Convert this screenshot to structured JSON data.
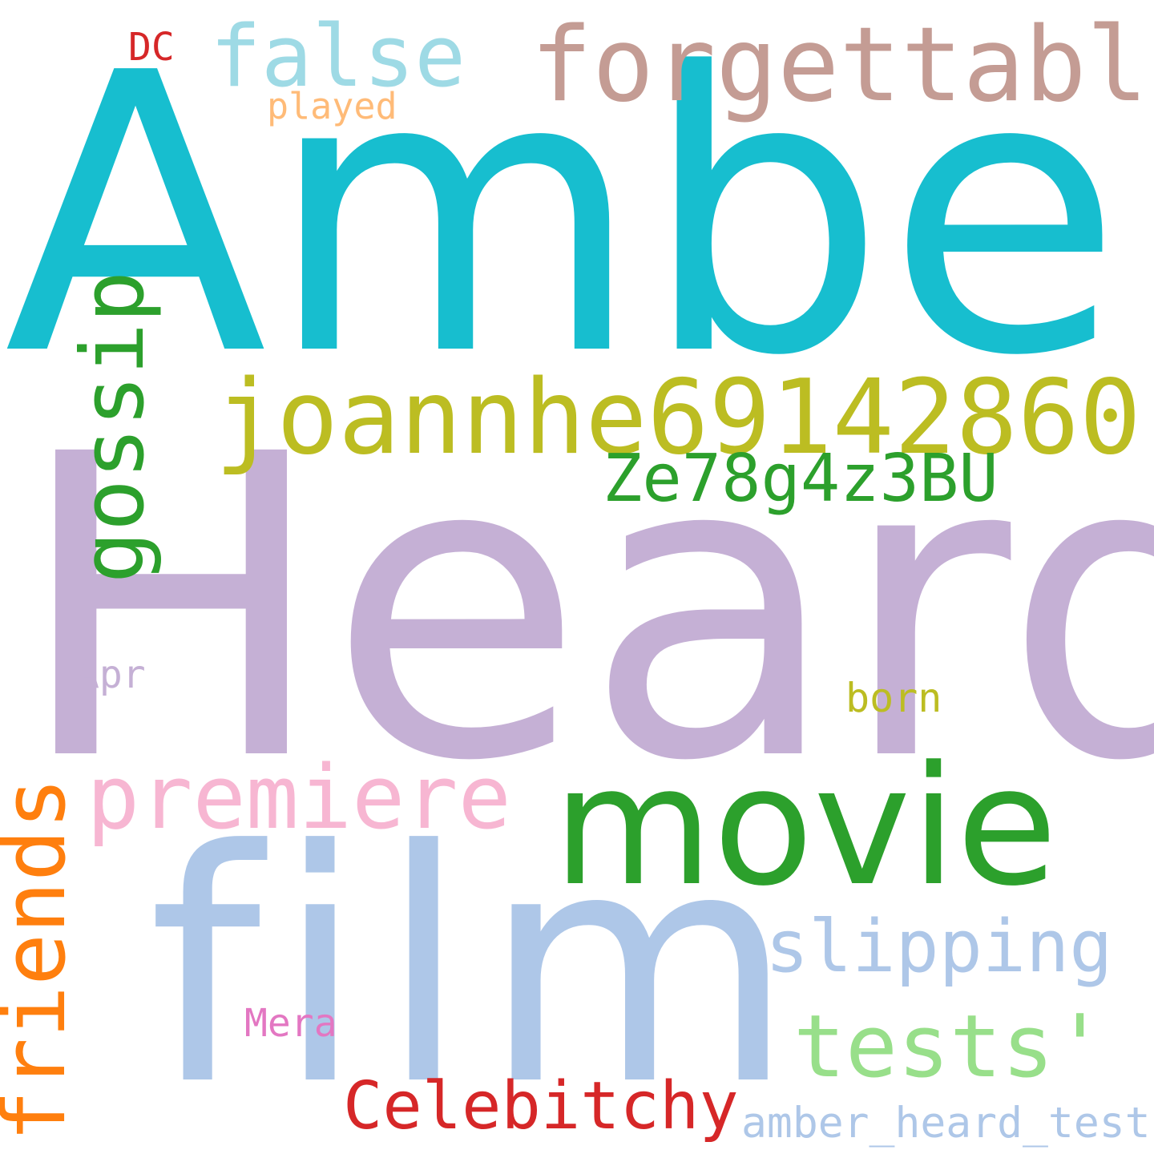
{
  "words": {
    "amber": {
      "text": "Amber",
      "color": "#17becf"
    },
    "heard": {
      "text": "Heard",
      "color": "#c5b0d5"
    },
    "film": {
      "text": "film",
      "color": "#aec7e8"
    },
    "movie": {
      "text": "movie",
      "color": "#2ca02c"
    },
    "joannhe": {
      "text": "joannhe69142860",
      "color": "#bcbd22"
    },
    "forgettable": {
      "text": "forgettable",
      "color": "#c49c94"
    },
    "false": {
      "text": "false",
      "color": "#9edae5"
    },
    "gossip": {
      "text": "gossip",
      "color": "#2ca02c"
    },
    "ze78": {
      "text": "Ze78g4z3BU",
      "color": "#2ca02c"
    },
    "premiere": {
      "text": "premiere",
      "color": "#f7b6d2"
    },
    "friends": {
      "text": "friends",
      "color": "#ff7f0e"
    },
    "slipping": {
      "text": "slipping",
      "color": "#aec7e8"
    },
    "tests": {
      "text": "tests'",
      "color": "#98df8a"
    },
    "celebitchy": {
      "text": "Celebitchy",
      "color": "#d62728"
    },
    "amber_test": {
      "text": "amber_heard_test",
      "color": "#aec7e8"
    },
    "mera": {
      "text": "Mera",
      "color": "#e377c2"
    },
    "apr": {
      "text": "Apr",
      "color": "#c5b0d5"
    },
    "born": {
      "text": "born",
      "color": "#bcbd22"
    },
    "played": {
      "text": "played",
      "color": "#ffbb78"
    },
    "dc": {
      "text": "DC",
      "color": "#d62728"
    }
  }
}
